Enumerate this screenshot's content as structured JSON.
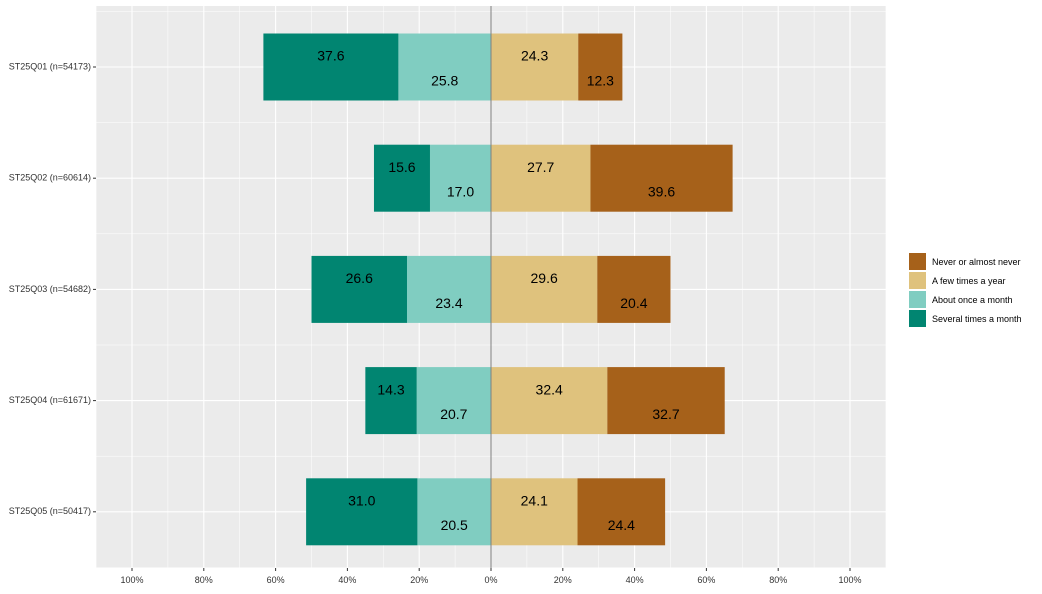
{
  "chart_data": {
    "type": "bar",
    "orientation": "horizontal",
    "stacking": "diverging",
    "title": "",
    "xlabel": "",
    "ylabel": "",
    "xlim": [
      -110,
      110
    ],
    "x_ticks": [
      -100,
      -80,
      -60,
      -40,
      -20,
      0,
      20,
      40,
      60,
      80,
      100
    ],
    "x_tick_labels": [
      "100%",
      "80%",
      "60%",
      "40%",
      "20%",
      "0%",
      "20%",
      "40%",
      "60%",
      "80%",
      "100%"
    ],
    "grid": true,
    "legend_position": "right",
    "categories": [
      "ST25Q01 (n=54173)",
      "ST25Q02 (n=60614)",
      "ST25Q03 (n=54682)",
      "ST25Q04 (n=61671)",
      "ST25Q05 (n=50417)"
    ],
    "series": [
      {
        "name": "Never or almost never",
        "color": "#A6611A",
        "side": "right",
        "values": [
          12.3,
          39.6,
          20.4,
          32.7,
          24.4
        ],
        "labels": [
          "12.3",
          "39.6",
          "20.4",
          "32.7",
          "24.4"
        ]
      },
      {
        "name": "A few times a year",
        "color": "#DFC27D",
        "side": "right",
        "values": [
          24.3,
          27.7,
          29.6,
          32.4,
          24.1
        ],
        "labels": [
          "24.3",
          "27.7",
          "29.6",
          "32.4",
          "24.1"
        ]
      },
      {
        "name": "About once a month",
        "color": "#80CDC1",
        "side": "left",
        "values": [
          25.8,
          17.0,
          23.4,
          20.7,
          20.5
        ],
        "labels": [
          "25.8",
          "17.0",
          "23.4",
          "20.7",
          "20.5"
        ]
      },
      {
        "name": "Several times a month",
        "color": "#018571",
        "side": "left",
        "values": [
          37.6,
          15.6,
          26.6,
          14.3,
          31.0
        ],
        "labels": [
          "37.6",
          "15.6",
          "26.6",
          "14.3",
          "31.0"
        ]
      }
    ]
  },
  "colors": {
    "panel_background": "#EBEBEB",
    "grid_major": "#FFFFFF",
    "zero_line": "#808080"
  }
}
